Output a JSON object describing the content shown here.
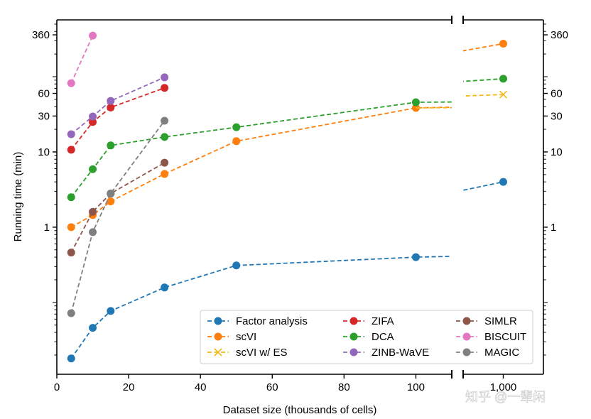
{
  "chart_data": {
    "type": "line",
    "xlabel": "Dataset size (thousands of cells)",
    "ylabel": "Running time (min)",
    "x_axis_broken": true,
    "xlim_left": [
      0,
      110
    ],
    "xlim_right": [
      900,
      1100
    ],
    "xticks_left": [
      0,
      20,
      40,
      60,
      80,
      100
    ],
    "xticks_right": [
      {
        "value": 1000,
        "label": "1,000"
      }
    ],
    "yscale": "log",
    "ylim": [
      0.0111,
      569
    ],
    "yticks": [
      {
        "value": 1,
        "label": "1"
      },
      {
        "value": 10,
        "label": "10"
      },
      {
        "value": 30,
        "label": "30"
      },
      {
        "value": 60,
        "label": "60"
      },
      {
        "value": 360,
        "label": "360"
      }
    ],
    "yticks_both_sides": true,
    "grid": false,
    "legend_placement": "bottom-right",
    "series": [
      {
        "name": "Factor analysis",
        "color": "#1f77b4",
        "marker": "circle",
        "x": [
          4,
          10,
          15,
          30,
          50,
          100,
          1000
        ],
        "y": [
          0.018,
          0.046,
          0.077,
          0.158,
          0.31,
          0.4,
          4.0
        ]
      },
      {
        "name": "scVI",
        "color": "#ff7f0e",
        "marker": "circle",
        "x": [
          4,
          10,
          15,
          30,
          50,
          100,
          1000
        ],
        "y": [
          1.0,
          1.45,
          2.2,
          5.1,
          13.9,
          38.5,
          275
        ]
      },
      {
        "name": "scVI w/ ES",
        "color": "#f5b81c",
        "marker": "x",
        "x": [
          100,
          1000
        ],
        "y": [
          38.5,
          58
        ],
        "hide_markers_before": 1000
      },
      {
        "name": "ZIFA",
        "color": "#d62728",
        "marker": "circle",
        "x": [
          4,
          10,
          15,
          30
        ],
        "y": [
          10.7,
          25,
          39,
          71
        ]
      },
      {
        "name": "DCA",
        "color": "#2ca02c",
        "marker": "circle",
        "x": [
          4,
          10,
          15,
          30,
          50,
          100,
          1000
        ],
        "y": [
          2.5,
          5.9,
          12.2,
          15.8,
          21.3,
          45.7,
          94
        ]
      },
      {
        "name": "ZINB-WaVE",
        "color": "#9467bd",
        "marker": "circle",
        "x": [
          4,
          10,
          15,
          30
        ],
        "y": [
          17.2,
          29.6,
          47.7,
          98
        ]
      },
      {
        "name": "SIMLR",
        "color": "#8c564b",
        "marker": "circle",
        "x": [
          4,
          10,
          15,
          30
        ],
        "y": [
          0.46,
          1.6,
          2.8,
          7.2
        ]
      },
      {
        "name": "BISCUIT",
        "color": "#e377c2",
        "marker": "circle",
        "x": [
          4,
          10
        ],
        "y": [
          82,
          352
        ]
      },
      {
        "name": "MAGIC",
        "color": "#7f7f7f",
        "marker": "circle",
        "x": [
          4,
          10,
          15,
          30
        ],
        "y": [
          0.072,
          0.86,
          2.8,
          26
        ]
      }
    ]
  },
  "watermark": "知乎 @一辈闲"
}
